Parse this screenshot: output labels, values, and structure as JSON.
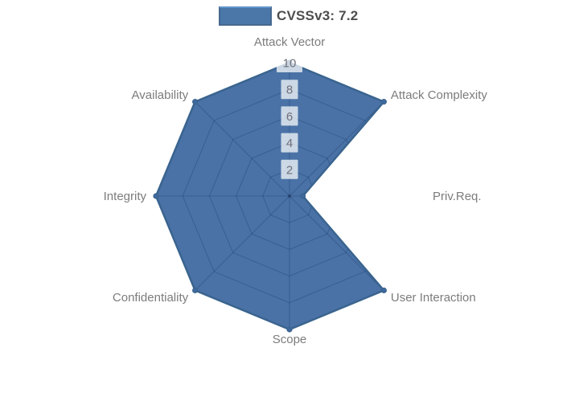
{
  "legend": {
    "label": "CVSSv3: 7.2",
    "swatch_fill": "#4A76A8",
    "swatch_border": "#47688E",
    "swatch_topline": "#6195CA",
    "text_color": "#4D4D4D"
  },
  "chart_data": {
    "type": "radar",
    "title": "",
    "categories": [
      "Attack Vector",
      "Attack Complexity",
      "Priv.Req.",
      "User Interaction",
      "Scope",
      "Confidentiality",
      "Integrity",
      "Availability"
    ],
    "series": [
      {
        "name": "CVSSv3: 7.2",
        "values": [
          10,
          10,
          1,
          10,
          10,
          10,
          10,
          10
        ]
      }
    ],
    "radial_ticks": [
      2,
      4,
      6,
      8,
      10
    ],
    "radial_range": [
      0,
      10
    ],
    "start_angle_deg": 90,
    "direction": "clockwise",
    "grid": true,
    "legend_position": "top-center",
    "colors": {
      "fill": "#4A72A6",
      "border": "#3A648F",
      "marker": "#3F699B",
      "grid_line": "rgba(23,48,92,0.30)",
      "center_dot": "rgba(23,48,92,0.45)",
      "axis_label": "#7C7C7C",
      "tick_label": "#70707A",
      "tick_label_bg": "rgba(255,255,255,0.72)"
    }
  }
}
